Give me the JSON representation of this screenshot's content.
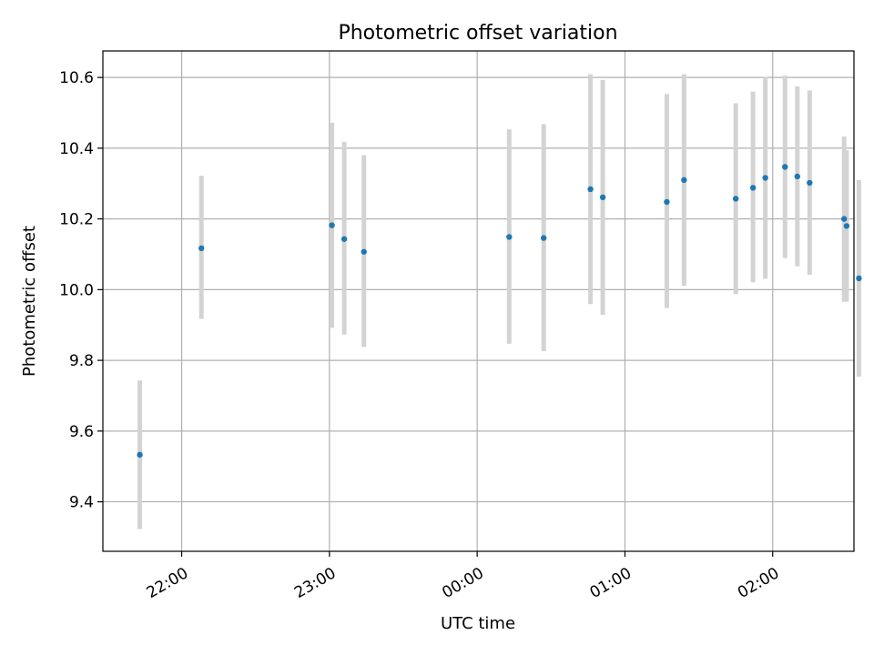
{
  "chart_data": {
    "type": "scatter",
    "title": "Photometric offset variation",
    "xlabel": "UTC time",
    "ylabel": "Photometric offset",
    "x_axis": {
      "kind": "time",
      "tick_labels": [
        "22:00",
        "23:00",
        "00:00",
        "01:00",
        "02:00"
      ],
      "tick_times": [
        "22:00",
        "23:00",
        "24:00",
        "25:00",
        "26:00"
      ],
      "range": [
        "21:28",
        "26:33"
      ]
    },
    "y_axis": {
      "ticks": [
        9.4,
        9.6,
        9.8,
        10.0,
        10.2,
        10.4,
        10.6
      ],
      "tick_labels": [
        "9.4",
        "9.6",
        "9.8",
        "10.0",
        "10.2",
        "10.4",
        "10.6"
      ],
      "range": [
        9.26,
        10.675
      ]
    },
    "grid": true,
    "legend": "none",
    "colors": {
      "points": "#1f77b4",
      "error_bars": "#d3d3d3",
      "grid": "#b0b0b0"
    },
    "series": [
      {
        "points": [
          {
            "t": "21:43",
            "y": 9.533,
            "lo": 9.323,
            "hi": 9.743
          },
          {
            "t": "22:08",
            "y": 10.117,
            "lo": 9.917,
            "hi": 10.322
          },
          {
            "t": "23:01",
            "y": 10.182,
            "lo": 9.892,
            "hi": 10.472
          },
          {
            "t": "23:06",
            "y": 10.143,
            "lo": 9.873,
            "hi": 10.418
          },
          {
            "t": "23:14",
            "y": 10.107,
            "lo": 9.838,
            "hi": 10.38
          },
          {
            "t": "00:13",
            "y": 10.149,
            "lo": 9.847,
            "hi": 10.453
          },
          {
            "t": "00:27",
            "y": 10.146,
            "lo": 9.826,
            "hi": 10.468
          },
          {
            "t": "00:46",
            "y": 10.284,
            "lo": 9.959,
            "hi": 10.609
          },
          {
            "t": "00:51",
            "y": 10.261,
            "lo": 9.929,
            "hi": 10.593
          },
          {
            "t": "01:17",
            "y": 10.248,
            "lo": 9.948,
            "hi": 10.553
          },
          {
            "t": "01:24",
            "y": 10.31,
            "lo": 10.011,
            "hi": 10.609
          },
          {
            "t": "01:45",
            "y": 10.257,
            "lo": 9.987,
            "hi": 10.527
          },
          {
            "t": "01:52",
            "y": 10.288,
            "lo": 10.021,
            "hi": 10.56
          },
          {
            "t": "01:57",
            "y": 10.316,
            "lo": 10.031,
            "hi": 10.601
          },
          {
            "t": "02:05",
            "y": 10.347,
            "lo": 10.089,
            "hi": 10.605
          },
          {
            "t": "02:10",
            "y": 10.32,
            "lo": 10.066,
            "hi": 10.575
          },
          {
            "t": "02:15",
            "y": 10.302,
            "lo": 10.042,
            "hi": 10.563
          },
          {
            "t": "02:29",
            "y": 10.2,
            "lo": 9.966,
            "hi": 10.433
          },
          {
            "t": "02:30",
            "y": 10.18,
            "lo": 9.966,
            "hi": 10.394
          },
          {
            "t": "02:35",
            "y": 10.032,
            "lo": 9.754,
            "hi": 10.31
          }
        ]
      }
    ]
  }
}
